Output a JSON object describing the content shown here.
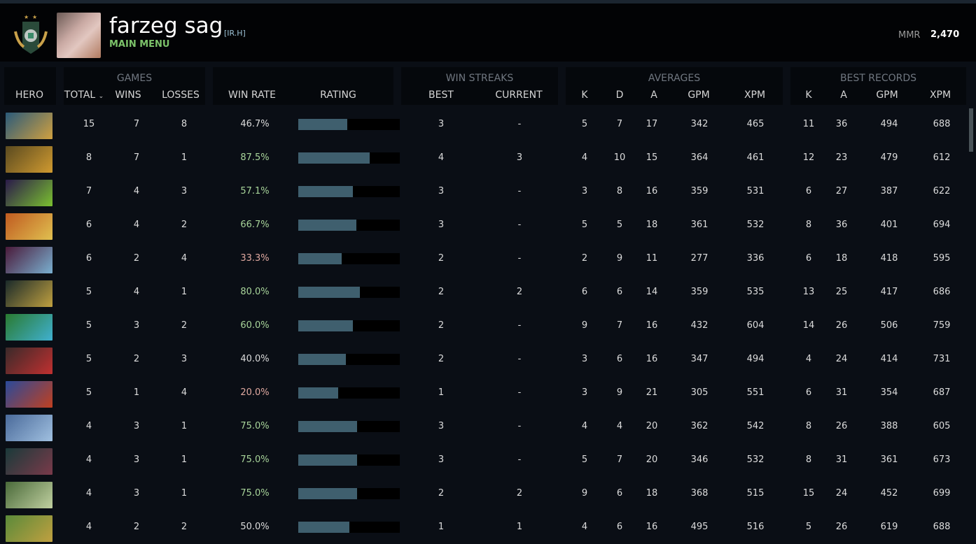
{
  "profile": {
    "name": "farzeg sag",
    "clan": "[IR.H]",
    "subtitle": "MAIN MENU",
    "mmr_label": "MMR",
    "mmr_value": "2,470"
  },
  "headers": {
    "hero": "HERO",
    "games": "GAMES",
    "total": "TOTAL",
    "wins": "WINS",
    "losses": "LOSSES",
    "win_rate": "WIN RATE",
    "rating": "RATING",
    "win_streaks": "WIN STREAKS",
    "best": "BEST",
    "current": "CURRENT",
    "averages": "AVERAGES",
    "best_records": "BEST RECORDS",
    "k": "K",
    "d": "D",
    "a": "A",
    "gpm": "GPM",
    "xpm": "XPM",
    "sort_icon": "chevron-down-icon"
  },
  "colors": {
    "winrate_good": "#a8d49a",
    "winrate_bad": "#e0a9a0",
    "winrate_neutral": "#dcdcdc",
    "bar_fill": "#3f5f6e"
  },
  "rows": [
    {
      "portrait": [
        "#2a5a7a",
        "#d0a040"
      ],
      "total": "15",
      "wins": "7",
      "losses": "8",
      "win_rate": "46.7%",
      "tone": "neutral",
      "rating": 0.48,
      "best": "3",
      "current": "-",
      "k": "5",
      "d": "7",
      "a": "17",
      "gpm": "342",
      "xpm": "465",
      "bk": "11",
      "ba": "36",
      "bgpm": "494",
      "bxpm": "688"
    },
    {
      "portrait": [
        "#5a4a20",
        "#d09a30"
      ],
      "total": "8",
      "wins": "7",
      "losses": "1",
      "win_rate": "87.5%",
      "tone": "good",
      "rating": 0.7,
      "best": "4",
      "current": "3",
      "k": "4",
      "d": "10",
      "a": "15",
      "gpm": "364",
      "xpm": "461",
      "bk": "12",
      "ba": "23",
      "bgpm": "479",
      "bxpm": "612"
    },
    {
      "portrait": [
        "#2a1a4a",
        "#7ac030"
      ],
      "total": "7",
      "wins": "4",
      "losses": "3",
      "win_rate": "57.1%",
      "tone": "good",
      "rating": 0.54,
      "best": "3",
      "current": "-",
      "k": "3",
      "d": "8",
      "a": "16",
      "gpm": "359",
      "xpm": "531",
      "bk": "6",
      "ba": "27",
      "bgpm": "387",
      "bxpm": "622"
    },
    {
      "portrait": [
        "#c05a20",
        "#e0c050"
      ],
      "total": "6",
      "wins": "4",
      "losses": "2",
      "win_rate": "66.7%",
      "tone": "good",
      "rating": 0.57,
      "best": "3",
      "current": "-",
      "k": "5",
      "d": "5",
      "a": "18",
      "gpm": "361",
      "xpm": "532",
      "bk": "8",
      "ba": "36",
      "bgpm": "401",
      "bxpm": "694"
    },
    {
      "portrait": [
        "#4a1a3a",
        "#7ab0d0"
      ],
      "total": "6",
      "wins": "2",
      "losses": "4",
      "win_rate": "33.3%",
      "tone": "bad",
      "rating": 0.43,
      "best": "2",
      "current": "-",
      "k": "2",
      "d": "9",
      "a": "11",
      "gpm": "277",
      "xpm": "336",
      "bk": "6",
      "ba": "18",
      "bgpm": "418",
      "bxpm": "595"
    },
    {
      "portrait": [
        "#1a2a2a",
        "#c0a040"
      ],
      "total": "5",
      "wins": "4",
      "losses": "1",
      "win_rate": "80.0%",
      "tone": "good",
      "rating": 0.61,
      "best": "2",
      "current": "2",
      "k": "6",
      "d": "6",
      "a": "14",
      "gpm": "359",
      "xpm": "535",
      "bk": "13",
      "ba": "25",
      "bgpm": "417",
      "bxpm": "686"
    },
    {
      "portrait": [
        "#2a7a30",
        "#40b0d0"
      ],
      "total": "5",
      "wins": "3",
      "losses": "2",
      "win_rate": "60.0%",
      "tone": "good",
      "rating": 0.54,
      "best": "2",
      "current": "-",
      "k": "9",
      "d": "7",
      "a": "16",
      "gpm": "432",
      "xpm": "604",
      "bk": "14",
      "ba": "26",
      "bgpm": "506",
      "bxpm": "759"
    },
    {
      "portrait": [
        "#3a2a2a",
        "#c03030"
      ],
      "total": "5",
      "wins": "2",
      "losses": "3",
      "win_rate": "40.0%",
      "tone": "neutral",
      "rating": 0.47,
      "best": "2",
      "current": "-",
      "k": "3",
      "d": "6",
      "a": "16",
      "gpm": "347",
      "xpm": "494",
      "bk": "4",
      "ba": "24",
      "bgpm": "414",
      "bxpm": "731"
    },
    {
      "portrait": [
        "#2a4a9a",
        "#c04020"
      ],
      "total": "5",
      "wins": "1",
      "losses": "4",
      "win_rate": "20.0%",
      "tone": "bad",
      "rating": 0.39,
      "best": "1",
      "current": "-",
      "k": "3",
      "d": "9",
      "a": "21",
      "gpm": "305",
      "xpm": "551",
      "bk": "6",
      "ba": "31",
      "bgpm": "354",
      "bxpm": "687"
    },
    {
      "portrait": [
        "#4a6a9a",
        "#a0c0e0"
      ],
      "total": "4",
      "wins": "3",
      "losses": "1",
      "win_rate": "75.0%",
      "tone": "good",
      "rating": 0.58,
      "best": "3",
      "current": "-",
      "k": "4",
      "d": "4",
      "a": "20",
      "gpm": "362",
      "xpm": "542",
      "bk": "8",
      "ba": "26",
      "bgpm": "388",
      "bxpm": "605"
    },
    {
      "portrait": [
        "#1a3a3a",
        "#7a3a4a"
      ],
      "total": "4",
      "wins": "3",
      "losses": "1",
      "win_rate": "75.0%",
      "tone": "good",
      "rating": 0.58,
      "best": "3",
      "current": "-",
      "k": "5",
      "d": "7",
      "a": "20",
      "gpm": "346",
      "xpm": "532",
      "bk": "8",
      "ba": "31",
      "bgpm": "361",
      "bxpm": "673"
    },
    {
      "portrait": [
        "#4a6a3a",
        "#c0d0a0"
      ],
      "total": "4",
      "wins": "3",
      "losses": "1",
      "win_rate": "75.0%",
      "tone": "good",
      "rating": 0.58,
      "best": "2",
      "current": "2",
      "k": "9",
      "d": "6",
      "a": "18",
      "gpm": "368",
      "xpm": "515",
      "bk": "15",
      "ba": "24",
      "bgpm": "452",
      "bxpm": "699"
    },
    {
      "portrait": [
        "#5a8a3a",
        "#c0a040"
      ],
      "total": "4",
      "wins": "2",
      "losses": "2",
      "win_rate": "50.0%",
      "tone": "neutral",
      "rating": 0.5,
      "best": "1",
      "current": "1",
      "k": "4",
      "d": "6",
      "a": "16",
      "gpm": "495",
      "xpm": "516",
      "bk": "5",
      "ba": "26",
      "bgpm": "619",
      "bxpm": "688"
    }
  ]
}
